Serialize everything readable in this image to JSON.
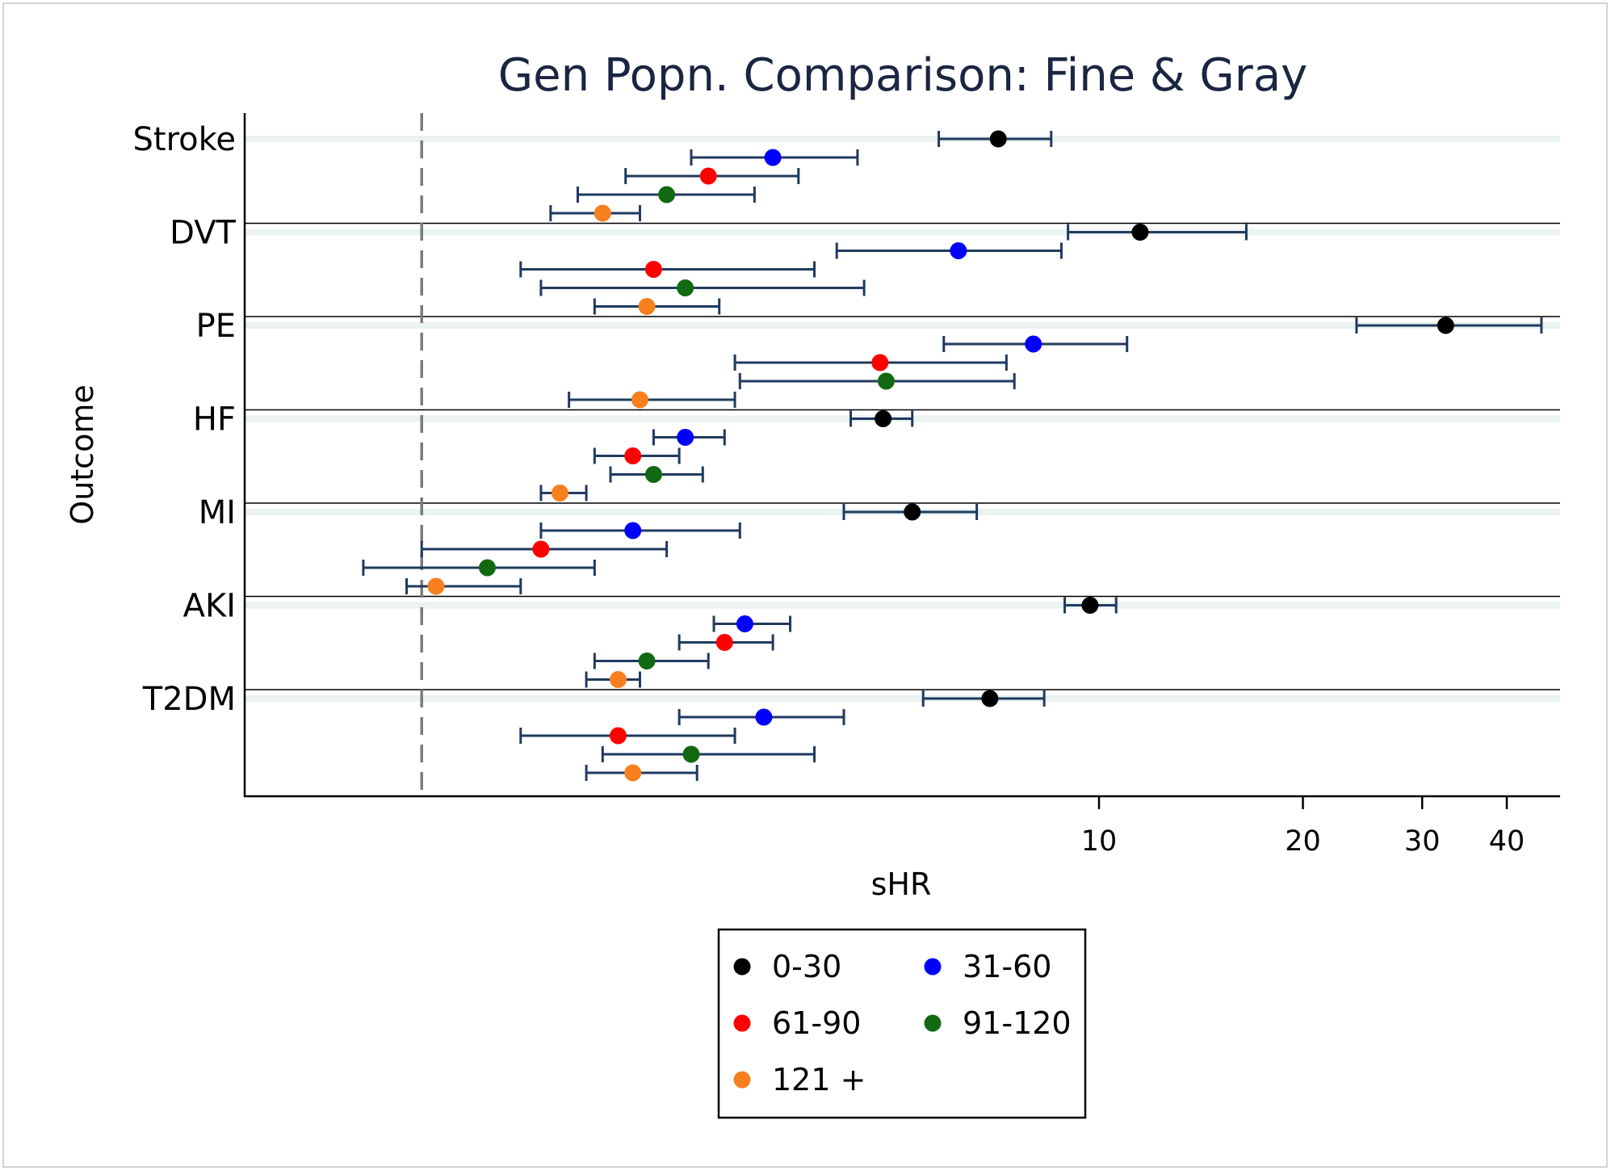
{
  "chart_data": {
    "type": "scatter",
    "subtype": "forest-plot",
    "title": "Gen Popn. Comparison: Fine & Gray",
    "xlabel": "sHR",
    "ylabel": "Outcome",
    "x_scale": "log",
    "x_ticks": [
      10,
      20,
      30,
      40
    ],
    "xlim": [
      0.5,
      46
    ],
    "reference_line": 1,
    "categories": [
      "Stroke",
      "DVT",
      "PE",
      "HF",
      "MI",
      "AKI",
      "T2DM"
    ],
    "legend_placement": "bottom",
    "series": [
      {
        "name": "0-30",
        "color": "#000000",
        "points": [
          {
            "outcome": "Stroke",
            "est": 7.1,
            "lo": 5.8,
            "hi": 8.5
          },
          {
            "outcome": "DVT",
            "est": 11.5,
            "lo": 9.0,
            "hi": 16.5
          },
          {
            "outcome": "PE",
            "est": 32.5,
            "lo": 24.0,
            "hi": 45.0
          },
          {
            "outcome": "HF",
            "est": 4.8,
            "lo": 4.3,
            "hi": 5.3
          },
          {
            "outcome": "MI",
            "est": 5.3,
            "lo": 4.2,
            "hi": 6.6
          },
          {
            "outcome": "AKI",
            "est": 9.7,
            "lo": 8.9,
            "hi": 10.6
          },
          {
            "outcome": "T2DM",
            "est": 6.9,
            "lo": 5.5,
            "hi": 8.3
          }
        ]
      },
      {
        "name": "31-60",
        "color": "#0000ff",
        "points": [
          {
            "outcome": "Stroke",
            "est": 3.3,
            "lo": 2.5,
            "hi": 4.4
          },
          {
            "outcome": "DVT",
            "est": 6.2,
            "lo": 4.1,
            "hi": 8.8
          },
          {
            "outcome": "PE",
            "est": 8.0,
            "lo": 5.9,
            "hi": 11.0
          },
          {
            "outcome": "HF",
            "est": 2.45,
            "lo": 2.2,
            "hi": 2.8
          },
          {
            "outcome": "MI",
            "est": 2.05,
            "lo": 1.5,
            "hi": 2.95
          },
          {
            "outcome": "AKI",
            "est": 3.0,
            "lo": 2.7,
            "hi": 3.5
          },
          {
            "outcome": "T2DM",
            "est": 3.2,
            "lo": 2.4,
            "hi": 4.2
          }
        ]
      },
      {
        "name": "61-90",
        "color": "#ff0000",
        "points": [
          {
            "outcome": "Stroke",
            "est": 2.65,
            "lo": 2.0,
            "hi": 3.6
          },
          {
            "outcome": "DVT",
            "est": 2.2,
            "lo": 1.4,
            "hi": 3.8
          },
          {
            "outcome": "PE",
            "est": 4.75,
            "lo": 2.9,
            "hi": 7.3
          },
          {
            "outcome": "HF",
            "est": 2.05,
            "lo": 1.8,
            "hi": 2.4
          },
          {
            "outcome": "MI",
            "est": 1.5,
            "lo": 1.0,
            "hi": 2.3
          },
          {
            "outcome": "AKI",
            "est": 2.8,
            "lo": 2.4,
            "hi": 3.3
          },
          {
            "outcome": "T2DM",
            "est": 1.95,
            "lo": 1.4,
            "hi": 2.9
          }
        ]
      },
      {
        "name": "91-120",
        "color": "#126912",
        "points": [
          {
            "outcome": "Stroke",
            "est": 2.3,
            "lo": 1.7,
            "hi": 3.1
          },
          {
            "outcome": "DVT",
            "est": 2.45,
            "lo": 1.5,
            "hi": 4.5
          },
          {
            "outcome": "PE",
            "est": 4.85,
            "lo": 2.95,
            "hi": 7.5
          },
          {
            "outcome": "HF",
            "est": 2.2,
            "lo": 1.9,
            "hi": 2.6
          },
          {
            "outcome": "MI",
            "est": 1.25,
            "lo": 0.82,
            "hi": 1.8
          },
          {
            "outcome": "AKI",
            "est": 2.15,
            "lo": 1.8,
            "hi": 2.65
          },
          {
            "outcome": "T2DM",
            "est": 2.5,
            "lo": 1.85,
            "hi": 3.8
          }
        ]
      },
      {
        "name": "121 +",
        "color": "#f77f1e",
        "points": [
          {
            "outcome": "Stroke",
            "est": 1.85,
            "lo": 1.55,
            "hi": 2.1
          },
          {
            "outcome": "DVT",
            "est": 2.15,
            "lo": 1.8,
            "hi": 2.75
          },
          {
            "outcome": "PE",
            "est": 2.1,
            "lo": 1.65,
            "hi": 2.9
          },
          {
            "outcome": "HF",
            "est": 1.6,
            "lo": 1.5,
            "hi": 1.75
          },
          {
            "outcome": "MI",
            "est": 1.05,
            "lo": 0.95,
            "hi": 1.4
          },
          {
            "outcome": "AKI",
            "est": 1.95,
            "lo": 1.75,
            "hi": 2.1
          },
          {
            "outcome": "T2DM",
            "est": 2.05,
            "lo": 1.75,
            "hi": 2.55
          }
        ]
      }
    ],
    "errorbar_color": "#1f3a5f"
  }
}
